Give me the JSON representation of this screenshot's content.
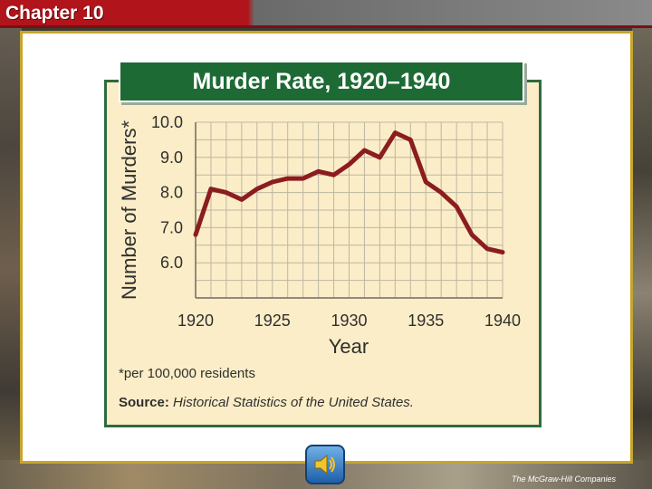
{
  "header": {
    "chapter_label": "Chapter 10"
  },
  "chart_data": {
    "type": "line",
    "title": "Murder Rate, 1920–1940",
    "xlabel": "Year",
    "ylabel": "Number of Murders*",
    "x_ticks": [
      "1920",
      "1925",
      "1930",
      "1935",
      "1940"
    ],
    "y_ticks": [
      "10.0",
      "9.0",
      "8.0",
      "7.0",
      "6.0"
    ],
    "xlim": [
      1920,
      1940
    ],
    "ylim": [
      5.0,
      10.0
    ],
    "grid": true,
    "series": [
      {
        "color": "#8b1c1f",
        "x": [
          1920,
          1921,
          1922,
          1923,
          1924,
          1925,
          1926,
          1927,
          1928,
          1929,
          1930,
          1931,
          1932,
          1933,
          1934,
          1935,
          1936,
          1937,
          1938,
          1939,
          1940
        ],
        "y": [
          6.8,
          8.1,
          8.0,
          7.8,
          8.1,
          8.3,
          8.4,
          8.4,
          8.6,
          8.5,
          8.8,
          9.2,
          9.0,
          9.7,
          9.5,
          8.3,
          8.0,
          7.6,
          6.8,
          6.4,
          6.3
        ]
      }
    ]
  },
  "footnote": "*per 100,000 residents",
  "source": {
    "label": "Source:",
    "text": "Historical Statistics of the United States."
  },
  "publisher": "The McGraw-Hill Companies",
  "colors": {
    "panel_bg": "#fbedc7",
    "title_bg": "#1e6a35",
    "line": "#8b1c1f",
    "accent": "#b1141a"
  }
}
